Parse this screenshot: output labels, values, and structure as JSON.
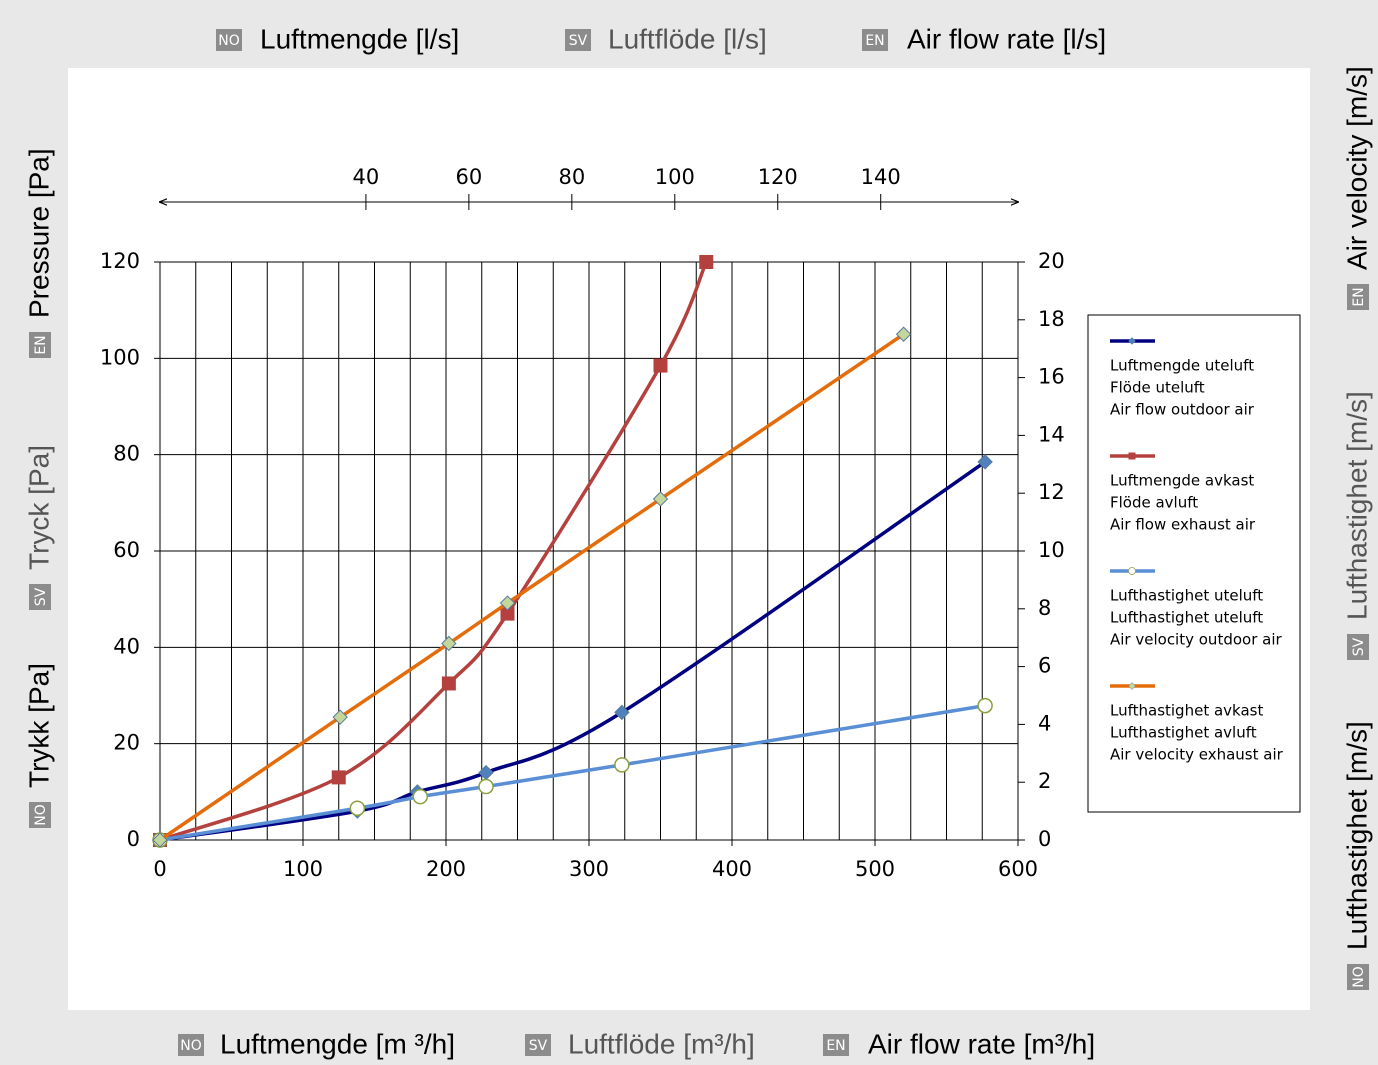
{
  "chart_data": {
    "type": "line",
    "top_title": [
      {
        "code": "NO",
        "text": "Luftmengde [l/s]"
      },
      {
        "code": "SV",
        "text": "Luftflöde [l/s]"
      },
      {
        "code": "EN",
        "text": "Air flow rate [l/s]"
      }
    ],
    "x_title": [
      {
        "code": "NO",
        "text": "Luftmengde [m ³/h]"
      },
      {
        "code": "SV",
        "text": "Luftflöde [m³/h]"
      },
      {
        "code": "EN",
        "text": "Air flow rate [m³/h]"
      }
    ],
    "y_title": [
      {
        "code": "NO",
        "text": "Trykk [Pa]"
      },
      {
        "code": "SV",
        "text": "Tryck [Pa]"
      },
      {
        "code": "EN",
        "text": "Pressure [Pa]"
      }
    ],
    "y2_title": [
      {
        "code": "NO",
        "text": "Lufthastighet [m/s]"
      },
      {
        "code": "SV",
        "text": "Lufthastighet [m/s]"
      },
      {
        "code": "EN",
        "text": "Air velocity [m/s]"
      }
    ],
    "xlim": [
      0,
      600
    ],
    "xticks": [
      0,
      100,
      200,
      300,
      400,
      500,
      600
    ],
    "x_gridlines": [
      25,
      50,
      75,
      100,
      125,
      150,
      175,
      200,
      225,
      250,
      275,
      300,
      325,
      350,
      375,
      400,
      425,
      450,
      475,
      500,
      525,
      550,
      575
    ],
    "x2lim": [
      0,
      166.67
    ],
    "x2ticks": [
      40,
      60,
      80,
      100,
      120,
      140
    ],
    "ylim": [
      0,
      120
    ],
    "yticks": [
      0,
      20,
      40,
      60,
      80,
      100,
      120
    ],
    "y2lim": [
      0,
      20
    ],
    "y2ticks": [
      0,
      2,
      4,
      6,
      8,
      10,
      12,
      14,
      16,
      18,
      20
    ],
    "grid": true,
    "legend": "right",
    "series": [
      {
        "name": [
          "Luftmengde uteluft",
          "Flöde uteluft",
          "Air flow outdoor air"
        ],
        "color": "#000080",
        "marker": "diamond",
        "marker_color": "#4f81bd",
        "x": [
          0,
          138,
          180,
          228,
          323,
          577
        ],
        "values": [
          0,
          6,
          10,
          14,
          26.5,
          78.5
        ]
      },
      {
        "name": [
          "Luftmengde avkast",
          "Flöde avluft",
          "Air flow exhaust air"
        ],
        "color": "#b5413e",
        "marker": "square",
        "marker_color": "#b5413e",
        "x": [
          0,
          125,
          202,
          243,
          350,
          382
        ],
        "values": [
          0,
          13,
          32.5,
          47,
          98.5,
          120
        ]
      },
      {
        "name": [
          "Lufthastighet uteluft",
          "Lufthastighet uteluft",
          "Air velocity outdoor air"
        ],
        "color": "#5a8fd6",
        "marker": "circle",
        "marker_color": "#ffffff",
        "axis": "y2",
        "x": [
          0,
          138,
          182,
          228,
          323,
          577
        ],
        "values": [
          0,
          1.1,
          1.5,
          1.85,
          2.6,
          4.65
        ]
      },
      {
        "name": [
          "Lufthastighet avkast",
          "Lufthastighet avluft",
          "Air velocity exhaust air"
        ],
        "color": "#e46c0a",
        "marker": "diamond",
        "marker_color": "#c3d69b",
        "axis": "y2",
        "x": [
          0,
          126,
          202,
          243,
          350,
          520
        ],
        "values": [
          0,
          4.25,
          6.8,
          8.2,
          11.8,
          17.5
        ]
      }
    ]
  }
}
